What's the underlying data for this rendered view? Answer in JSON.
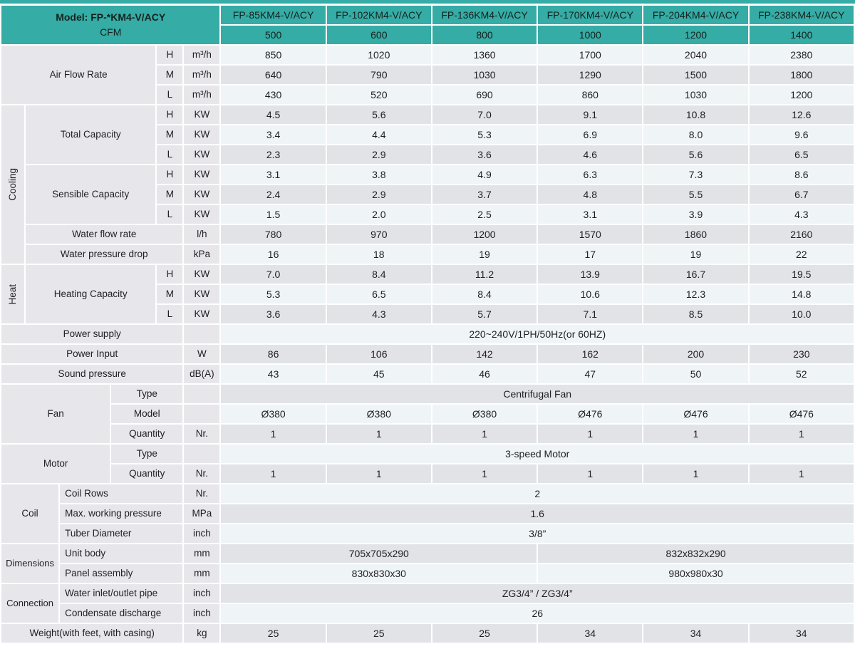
{
  "header": {
    "model_label": "Model: FP-*KM4-V/ACY",
    "cfm_label": "CFM",
    "models": [
      "FP-85KM4-V/ACY",
      "FP-102KM4-V/ACY",
      "FP-136KM4-V/ACY",
      "FP-170KM4-V/ACY",
      "FP-204KM4-V/ACY",
      "FP-238KM4-V/ACY"
    ],
    "cfm": [
      "500",
      "600",
      "800",
      "1000",
      "1200",
      "1400"
    ]
  },
  "air_flow": {
    "label": "Air Flow Rate",
    "rows": [
      {
        "key": "H",
        "unit": "m³/h",
        "values": [
          "850",
          "1020",
          "1360",
          "1700",
          "2040",
          "2380"
        ]
      },
      {
        "key": "M",
        "unit": "m³/h",
        "values": [
          "640",
          "790",
          "1030",
          "1290",
          "1500",
          "1800"
        ]
      },
      {
        "key": "L",
        "unit": "m³/h",
        "values": [
          "430",
          "520",
          "690",
          "860",
          "1030",
          "1200"
        ]
      }
    ]
  },
  "cooling": {
    "label": "Cooling",
    "total_capacity": {
      "label": "Total Capacity",
      "rows": [
        {
          "key": "H",
          "unit": "KW",
          "values": [
            "4.5",
            "5.6",
            "7.0",
            "9.1",
            "10.8",
            "12.6"
          ]
        },
        {
          "key": "M",
          "unit": "KW",
          "values": [
            "3.4",
            "4.4",
            "5.3",
            "6.9",
            "8.0",
            "9.6"
          ]
        },
        {
          "key": "L",
          "unit": "KW",
          "values": [
            "2.3",
            "2.9",
            "3.6",
            "4.6",
            "5.6",
            "6.5"
          ]
        }
      ]
    },
    "sensible_capacity": {
      "label": "Sensible Capacity",
      "rows": [
        {
          "key": "H",
          "unit": "KW",
          "values": [
            "3.1",
            "3.8",
            "4.9",
            "6.3",
            "7.3",
            "8.6"
          ]
        },
        {
          "key": "M",
          "unit": "KW",
          "values": [
            "2.4",
            "2.9",
            "3.7",
            "4.8",
            "5.5",
            "6.7"
          ]
        },
        {
          "key": "L",
          "unit": "KW",
          "values": [
            "1.5",
            "2.0",
            "2.5",
            "3.1",
            "3.9",
            "4.3"
          ]
        }
      ]
    },
    "water_flow_rate": {
      "label": "Water flow rate",
      "unit": "l/h",
      "values": [
        "780",
        "970",
        "1200",
        "1570",
        "1860",
        "2160"
      ]
    },
    "water_pressure_drop": {
      "label": "Water pressure drop",
      "unit": "kPa",
      "values": [
        "16",
        "18",
        "19",
        "17",
        "19",
        "22"
      ]
    }
  },
  "heat": {
    "label": "Heat",
    "heating_capacity": {
      "label": "Heating Capacity",
      "rows": [
        {
          "key": "H",
          "unit": "KW",
          "values": [
            "7.0",
            "8.4",
            "11.2",
            "13.9",
            "16.7",
            "19.5"
          ]
        },
        {
          "key": "M",
          "unit": "KW",
          "values": [
            "5.3",
            "6.5",
            "8.4",
            "10.6",
            "12.3",
            "14.8"
          ]
        },
        {
          "key": "L",
          "unit": "KW",
          "values": [
            "3.6",
            "4.3",
            "5.7",
            "7.1",
            "8.5",
            "10.0"
          ]
        }
      ]
    }
  },
  "power_supply": {
    "label": "Power supply",
    "value": "220~240V/1PH/50Hz(or 60HZ)"
  },
  "power_input": {
    "label": "Power Input",
    "unit": "W",
    "values": [
      "86",
      "106",
      "142",
      "162",
      "200",
      "230"
    ]
  },
  "sound_pressure": {
    "label": "Sound pressure",
    "unit": "dB(A)",
    "values": [
      "43",
      "45",
      "46",
      "47",
      "50",
      "52"
    ]
  },
  "fan": {
    "label": "Fan",
    "type": {
      "label": "Type",
      "value": "Centrifugal Fan"
    },
    "model": {
      "label": "Model",
      "values": [
        "Ø380",
        "Ø380",
        "Ø380",
        "Ø476",
        "Ø476",
        "Ø476"
      ]
    },
    "quantity": {
      "label": "Quantity",
      "unit": "Nr.",
      "values": [
        "1",
        "1",
        "1",
        "1",
        "1",
        "1"
      ]
    }
  },
  "motor": {
    "label": "Motor",
    "type": {
      "label": "Type",
      "value": "3-speed Motor"
    },
    "quantity": {
      "label": "Quantity",
      "unit": "Nr.",
      "values": [
        "1",
        "1",
        "1",
        "1",
        "1",
        "1"
      ]
    }
  },
  "coil": {
    "label": "Coil",
    "rows": [
      {
        "label": "Coil Rows",
        "unit": "Nr.",
        "value": "2"
      },
      {
        "label": "Max. working pressure",
        "unit": "MPa",
        "value": "1.6"
      },
      {
        "label": "Tuber Diameter",
        "unit": "inch",
        "value": "3/8”"
      }
    ]
  },
  "dimensions": {
    "label": "Dimensions",
    "rows": [
      {
        "label": "Unit body",
        "unit": "mm",
        "left_value": "705x705x290",
        "right_value": "832x832x290"
      },
      {
        "label": "Panel assembly",
        "unit": "mm",
        "left_value": "830x830x30",
        "right_value": "980x980x30"
      }
    ]
  },
  "connection": {
    "label": "Connection",
    "rows": [
      {
        "label": "Water inlet/outlet pipe",
        "unit": "inch",
        "value": "ZG3/4” / ZG3/4”"
      },
      {
        "label": "Condensate discharge",
        "unit": "inch",
        "value": "26"
      }
    ]
  },
  "weight": {
    "label": "Weight(with feet, with casing)",
    "unit": "kg",
    "values": [
      "25",
      "25",
      "25",
      "34",
      "34",
      "34"
    ]
  },
  "colors": {
    "teal": "#35aca5",
    "row_light": "#eff4f7",
    "row_gray": "#e2e3e7",
    "label_bg": "#e7e7eb"
  }
}
